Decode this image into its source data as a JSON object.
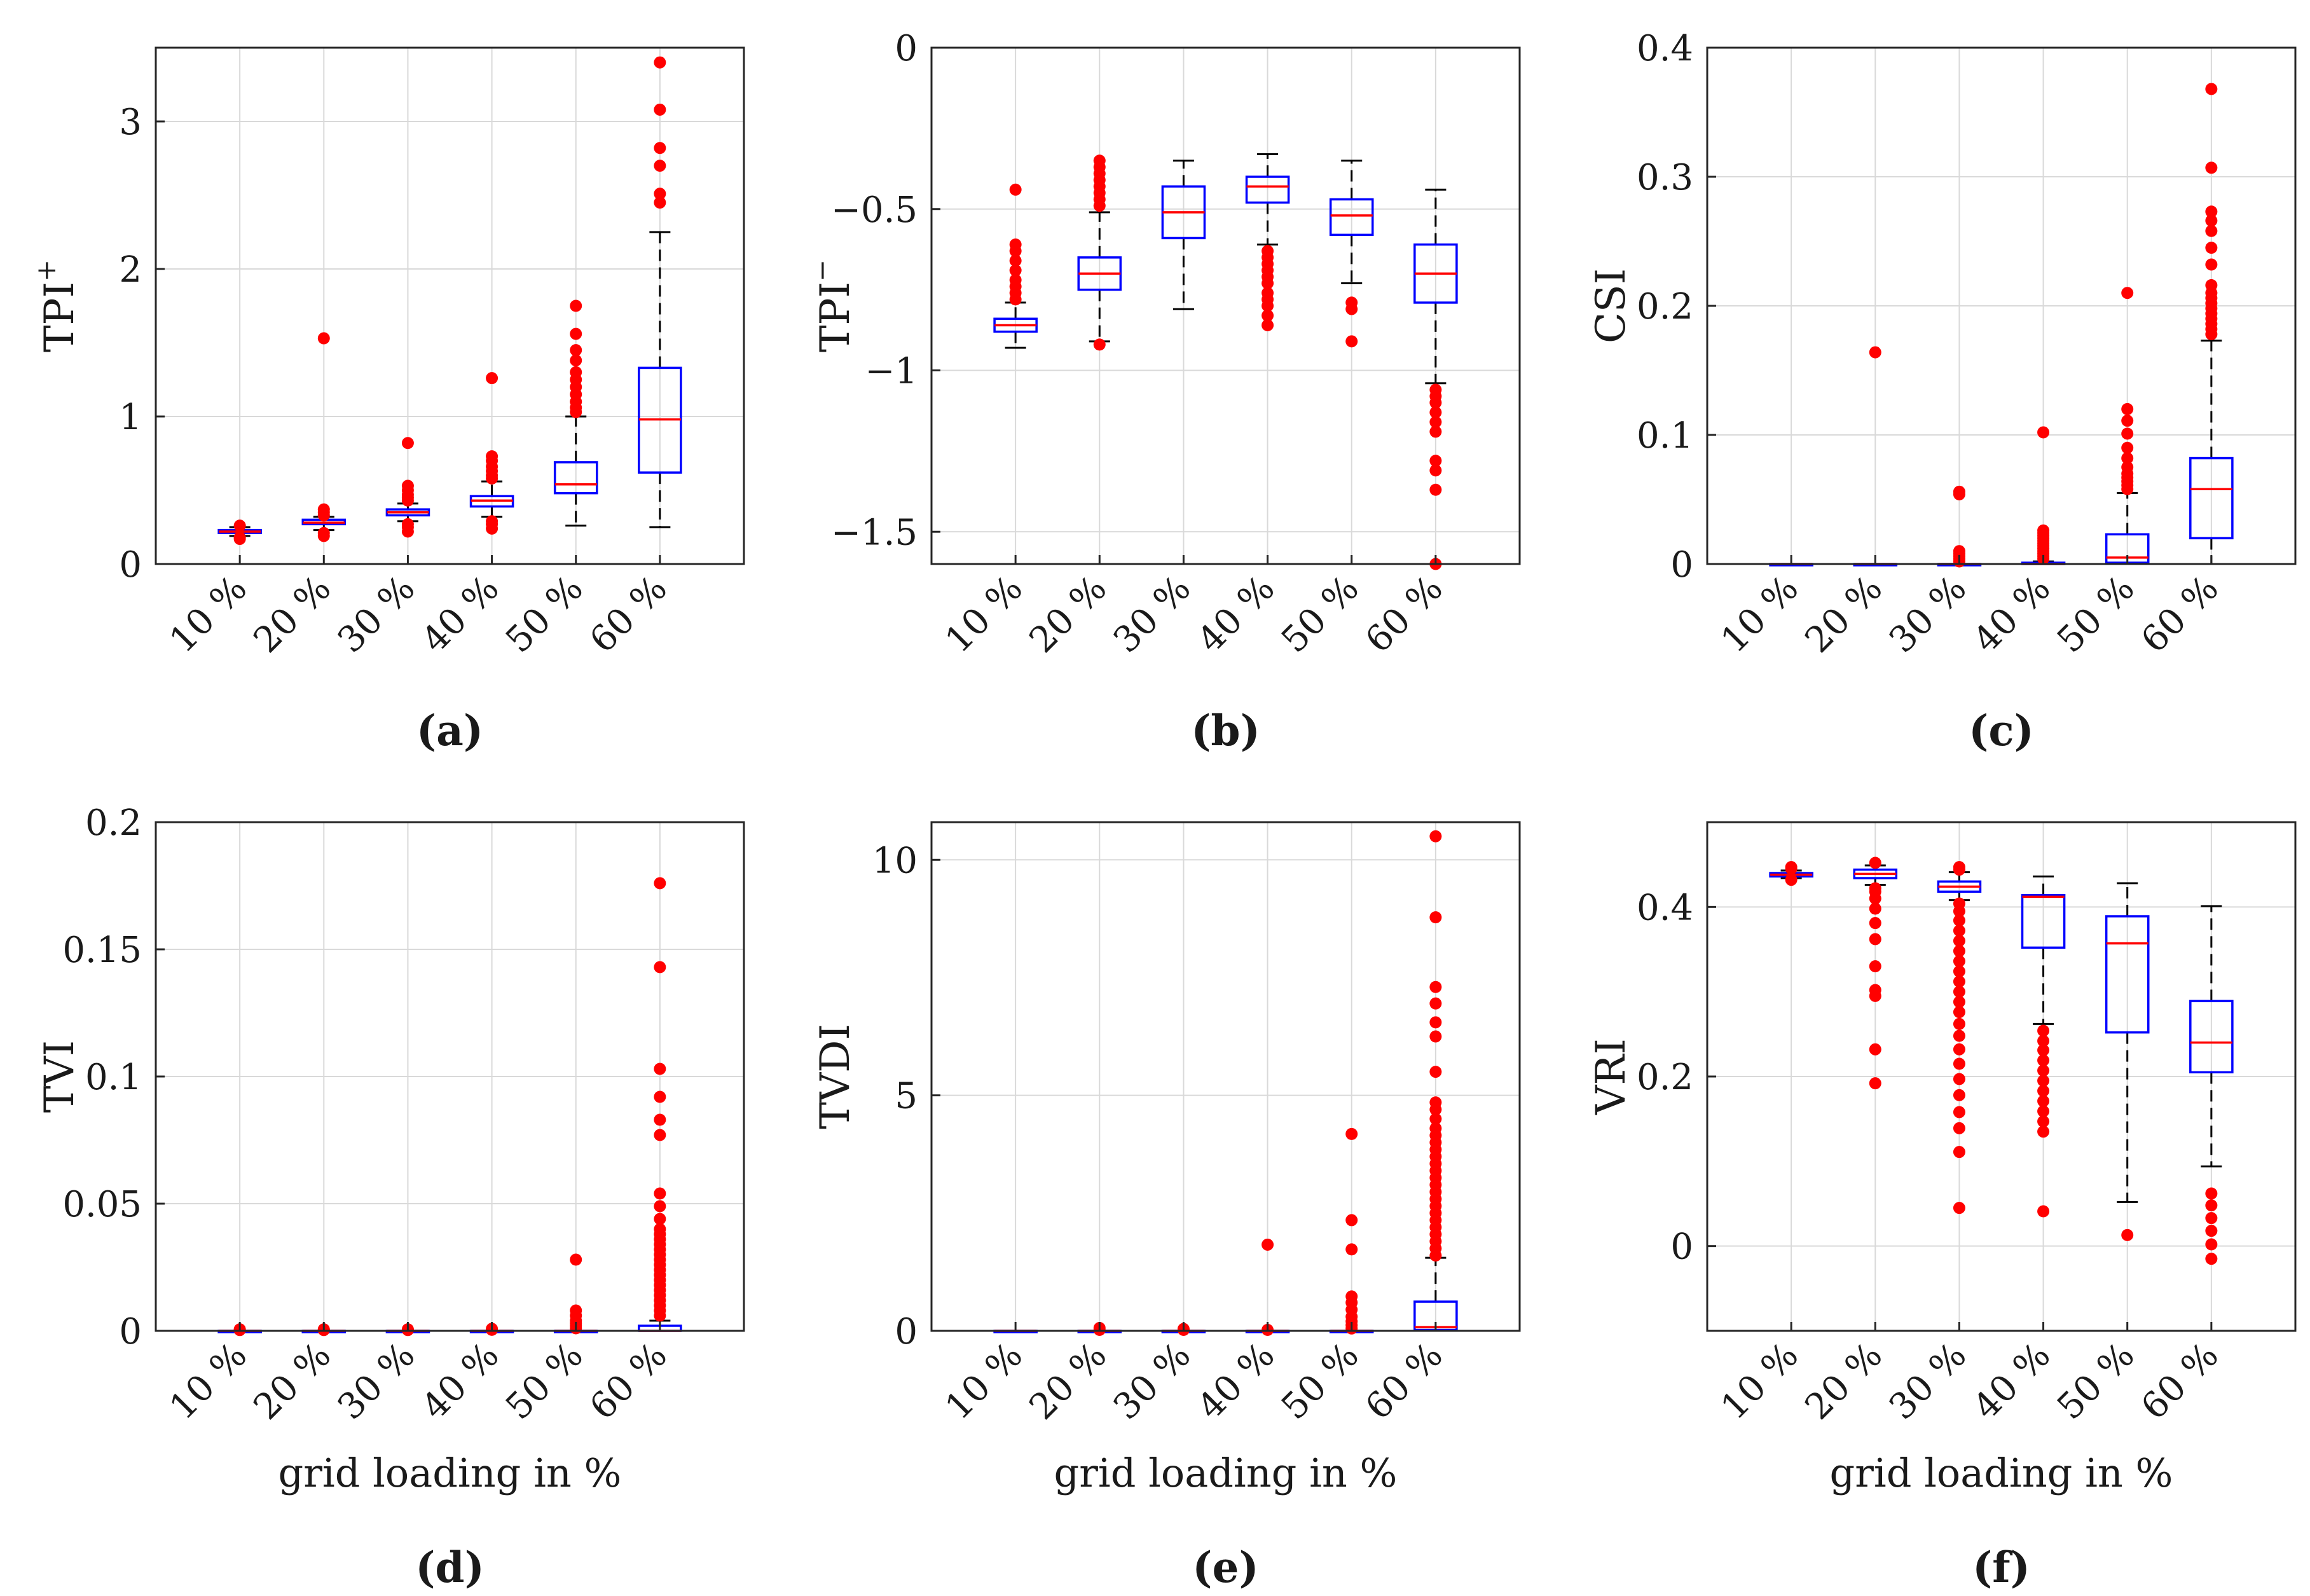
{
  "figure": {
    "panels": [
      "(a)",
      "(b)",
      "(c)",
      "(d)",
      "(e)",
      "(f)"
    ]
  },
  "colors": {
    "box": "#0000ff",
    "median": "#ff0000",
    "outlier": "#ff0000",
    "whisker": "#000000",
    "grid": "#d9d9d9",
    "axes": "#262626"
  },
  "chart_data": [
    {
      "type": "box",
      "panel_label": "(a)",
      "ylabel": "TPI",
      "ylabel_sup": "+",
      "xlabel": "",
      "categories": [
        "10 %",
        "20 %",
        "30 %",
        "40 %",
        "50 %",
        "60 %"
      ],
      "ylim": [
        0,
        3.5
      ],
      "yticks": [
        0,
        1,
        2,
        3
      ],
      "ytick_labels": [
        "0",
        "1",
        "2",
        "3"
      ],
      "grid": true,
      "boxes": [
        {
          "whisker_low": 0.19,
          "q1": 0.21,
          "median": 0.22,
          "q3": 0.23,
          "whisker_high": 0.25,
          "outliers": [
            0.17,
            0.18,
            0.26
          ]
        },
        {
          "whisker_low": 0.23,
          "q1": 0.27,
          "median": 0.28,
          "q3": 0.3,
          "whisker_high": 0.32,
          "outliers": [
            0.19,
            0.21,
            0.33,
            0.35,
            0.37,
            1.53
          ]
        },
        {
          "whisker_low": 0.29,
          "q1": 0.33,
          "median": 0.35,
          "q3": 0.37,
          "whisker_high": 0.41,
          "outliers": [
            0.22,
            0.25,
            0.27,
            0.43,
            0.45,
            0.47,
            0.5,
            0.53,
            0.82
          ]
        },
        {
          "whisker_low": 0.32,
          "q1": 0.39,
          "median": 0.43,
          "q3": 0.46,
          "whisker_high": 0.56,
          "outliers": [
            0.24,
            0.27,
            0.29,
            0.58,
            0.6,
            0.63,
            0.66,
            0.7,
            0.73,
            1.26
          ]
        },
        {
          "whisker_low": 0.26,
          "q1": 0.48,
          "median": 0.54,
          "q3": 0.69,
          "whisker_high": 1.0,
          "outliers": [
            1.03,
            1.06,
            1.1,
            1.15,
            1.2,
            1.25,
            1.3,
            1.38,
            1.45,
            1.56,
            1.75
          ]
        },
        {
          "whisker_low": 0.25,
          "q1": 0.62,
          "median": 0.98,
          "q3": 1.33,
          "whisker_high": 2.25,
          "outliers": [
            2.45,
            2.51,
            2.7,
            2.82,
            3.08,
            3.4
          ]
        }
      ]
    },
    {
      "type": "box",
      "panel_label": "(b)",
      "ylabel": "TPI",
      "ylabel_sup": "−",
      "xlabel": "",
      "categories": [
        "10 %",
        "20 %",
        "30 %",
        "40 %",
        "50 %",
        "60 %"
      ],
      "ylim": [
        -1.6,
        0
      ],
      "yticks": [
        0,
        -0.5,
        -1,
        -1.5
      ],
      "ytick_labels": [
        "0",
        "−0.5",
        "−1",
        "−1.5"
      ],
      "grid": true,
      "boxes": [
        {
          "whisker_low": -0.93,
          "q1": -0.88,
          "median": -0.86,
          "q3": -0.84,
          "whisker_high": -0.79,
          "outliers": [
            -0.44,
            -0.61,
            -0.63,
            -0.66,
            -0.69,
            -0.72,
            -0.74,
            -0.76,
            -0.78
          ]
        },
        {
          "whisker_low": -0.91,
          "q1": -0.75,
          "median": -0.7,
          "q3": -0.65,
          "whisker_high": -0.51,
          "outliers": [
            -0.35,
            -0.37,
            -0.39,
            -0.41,
            -0.43,
            -0.45,
            -0.47,
            -0.49,
            -0.92
          ]
        },
        {
          "whisker_low": -0.81,
          "q1": -0.59,
          "median": -0.51,
          "q3": -0.43,
          "whisker_high": -0.35,
          "outliers": []
        },
        {
          "whisker_low": -0.61,
          "q1": -0.48,
          "median": -0.43,
          "q3": -0.4,
          "whisker_high": -0.33,
          "outliers": [
            -0.63,
            -0.65,
            -0.67,
            -0.69,
            -0.71,
            -0.73,
            -0.76,
            -0.78,
            -0.8,
            -0.83,
            -0.86
          ]
        },
        {
          "whisker_low": -0.73,
          "q1": -0.58,
          "median": -0.52,
          "q3": -0.47,
          "whisker_high": -0.35,
          "outliers": [
            -0.79,
            -0.81,
            -0.91
          ]
        },
        {
          "whisker_low": -1.04,
          "q1": -0.79,
          "median": -0.7,
          "q3": -0.61,
          "whisker_high": -0.44,
          "outliers": [
            -1.06,
            -1.08,
            -1.1,
            -1.13,
            -1.16,
            -1.19,
            -1.28,
            -1.31,
            -1.37,
            -1.6
          ]
        }
      ]
    },
    {
      "type": "box",
      "panel_label": "(c)",
      "ylabel": "CSI",
      "xlabel": "",
      "categories": [
        "10 %",
        "20 %",
        "30 %",
        "40 %",
        "50 %",
        "60 %"
      ],
      "ylim": [
        0,
        0.4
      ],
      "yticks": [
        0,
        0.1,
        0.2,
        0.3,
        0.4
      ],
      "ytick_labels": [
        "0",
        "0.1",
        "0.2",
        "0.3",
        "0.4"
      ],
      "grid": true,
      "boxes": [
        {
          "whisker_low": 0,
          "q1": 0,
          "median": 0,
          "q3": 0,
          "whisker_high": 0,
          "outliers": []
        },
        {
          "whisker_low": 0,
          "q1": 0,
          "median": 0,
          "q3": 0,
          "whisker_high": 0,
          "outliers": [
            0.164
          ]
        },
        {
          "whisker_low": 0,
          "q1": 0,
          "median": 0,
          "q3": 0,
          "whisker_high": 0,
          "outliers": [
            0.002,
            0.004,
            0.006,
            0.008,
            0.01,
            0.054,
            0.056
          ]
        },
        {
          "whisker_low": 0,
          "q1": 0,
          "median": 0,
          "q3": 0.001,
          "whisker_high": 0.002,
          "outliers": [
            0.004,
            0.006,
            0.008,
            0.01,
            0.012,
            0.014,
            0.016,
            0.018,
            0.02,
            0.022,
            0.024,
            0.026,
            0.102
          ]
        },
        {
          "whisker_low": 0,
          "q1": 0.001,
          "median": 0.005,
          "q3": 0.023,
          "whisker_high": 0.055,
          "outliers": [
            0.058,
            0.061,
            0.064,
            0.067,
            0.07,
            0.075,
            0.082,
            0.09,
            0.101,
            0.111,
            0.12,
            0.21
          ]
        },
        {
          "whisker_low": 0,
          "q1": 0.02,
          "median": 0.058,
          "q3": 0.082,
          "whisker_high": 0.173,
          "outliers": [
            0.178,
            0.182,
            0.186,
            0.19,
            0.194,
            0.198,
            0.202,
            0.206,
            0.21,
            0.216,
            0.232,
            0.245,
            0.258,
            0.266,
            0.273,
            0.307,
            0.368
          ]
        }
      ]
    },
    {
      "type": "box",
      "panel_label": "(d)",
      "ylabel": "TVI",
      "xlabel": "grid loading in %",
      "categories": [
        "10 %",
        "20 %",
        "30 %",
        "40 %",
        "50 %",
        "60 %"
      ],
      "ylim": [
        0,
        0.2
      ],
      "yticks": [
        0,
        0.05,
        0.1,
        0.15,
        0.2
      ],
      "ytick_labels": [
        "0",
        "0.05",
        "0.1",
        "0.15",
        "0.2"
      ],
      "grid": true,
      "boxes": [
        {
          "whisker_low": 0,
          "q1": 0,
          "median": 0,
          "q3": 0,
          "whisker_high": 0,
          "outliers": [
            0.0003,
            0.0006
          ]
        },
        {
          "whisker_low": 0,
          "q1": 0,
          "median": 0,
          "q3": 0,
          "whisker_high": 0,
          "outliers": [
            0.0003,
            0.0006
          ]
        },
        {
          "whisker_low": 0,
          "q1": 0,
          "median": 0,
          "q3": 0,
          "whisker_high": 0,
          "outliers": [
            0.0003,
            0.0006
          ]
        },
        {
          "whisker_low": 0,
          "q1": 0,
          "median": 0,
          "q3": 0,
          "whisker_high": 0,
          "outliers": [
            0.0004,
            0.0008
          ]
        },
        {
          "whisker_low": 0,
          "q1": 0,
          "median": 0,
          "q3": 0,
          "whisker_high": 0,
          "outliers": [
            0.001,
            0.002,
            0.003,
            0.004,
            0.006,
            0.008,
            0.028
          ]
        },
        {
          "whisker_low": 0,
          "q1": 0,
          "median": 0,
          "q3": 0.002,
          "whisker_high": 0.004,
          "outliers": [
            0.006,
            0.008,
            0.01,
            0.012,
            0.014,
            0.016,
            0.018,
            0.02,
            0.022,
            0.024,
            0.026,
            0.028,
            0.03,
            0.032,
            0.034,
            0.036,
            0.038,
            0.04,
            0.044,
            0.049,
            0.054,
            0.077,
            0.083,
            0.092,
            0.103,
            0.143,
            0.176
          ]
        }
      ]
    },
    {
      "type": "box",
      "panel_label": "(e)",
      "ylabel": "TVDI",
      "xlabel": "grid loading in %",
      "categories": [
        "10 %",
        "20 %",
        "30 %",
        "40 %",
        "50 %",
        "60 %"
      ],
      "ylim": [
        0,
        10.8
      ],
      "yticks": [
        0,
        5,
        10
      ],
      "ytick_labels": [
        "0",
        "5",
        "10"
      ],
      "grid": true,
      "boxes": [
        {
          "whisker_low": 0,
          "q1": 0,
          "median": 0,
          "q3": 0,
          "whisker_high": 0,
          "outliers": []
        },
        {
          "whisker_low": 0,
          "q1": 0,
          "median": 0,
          "q3": 0,
          "whisker_high": 0,
          "outliers": [
            0.02,
            0.06
          ]
        },
        {
          "whisker_low": 0,
          "q1": 0,
          "median": 0,
          "q3": 0,
          "whisker_high": 0,
          "outliers": [
            0.02,
            0.04
          ]
        },
        {
          "whisker_low": 0,
          "q1": 0,
          "median": 0,
          "q3": 0,
          "whisker_high": 0,
          "outliers": [
            0.02,
            1.83
          ]
        },
        {
          "whisker_low": 0,
          "q1": 0,
          "median": 0,
          "q3": 0,
          "whisker_high": 0,
          "outliers": [
            0.05,
            0.12,
            0.2,
            0.3,
            0.45,
            0.6,
            0.73,
            1.73,
            2.35,
            4.18
          ]
        },
        {
          "whisker_low": 0,
          "q1": 0.02,
          "median": 0.08,
          "q3": 0.62,
          "whisker_high": 1.55,
          "outliers": [
            1.6,
            1.75,
            1.9,
            2.05,
            2.2,
            2.35,
            2.5,
            2.65,
            2.8,
            2.95,
            3.1,
            3.25,
            3.4,
            3.55,
            3.7,
            3.85,
            4.0,
            4.15,
            4.3,
            4.5,
            4.7,
            4.85,
            5.5,
            6.25,
            6.55,
            6.95,
            7.3,
            8.78,
            10.5
          ]
        }
      ]
    },
    {
      "type": "box",
      "panel_label": "(f)",
      "ylabel": "VRI",
      "xlabel": "grid loading in %",
      "categories": [
        "10 %",
        "20 %",
        "30 %",
        "40 %",
        "50 %",
        "60 %"
      ],
      "ylim": [
        -0.1,
        0.5
      ],
      "yticks": [
        0,
        0.2,
        0.4
      ],
      "ytick_labels": [
        "0",
        "0.2",
        "0.4"
      ],
      "grid": true,
      "boxes": [
        {
          "whisker_low": 0.434,
          "q1": 0.436,
          "median": 0.438,
          "q3": 0.44,
          "whisker_high": 0.443,
          "outliers": [
            0.432,
            0.445,
            0.447
          ]
        },
        {
          "whisker_low": 0.426,
          "q1": 0.434,
          "median": 0.439,
          "q3": 0.444,
          "whisker_high": 0.449,
          "outliers": [
            0.192,
            0.232,
            0.295,
            0.302,
            0.33,
            0.362,
            0.381,
            0.398,
            0.41,
            0.418,
            0.422,
            0.452
          ]
        },
        {
          "whisker_low": 0.408,
          "q1": 0.418,
          "median": 0.424,
          "q3": 0.43,
          "whisker_high": 0.441,
          "outliers": [
            0.045,
            0.111,
            0.139,
            0.158,
            0.178,
            0.197,
            0.215,
            0.232,
            0.248,
            0.262,
            0.276,
            0.288,
            0.3,
            0.312,
            0.324,
            0.336,
            0.348,
            0.36,
            0.372,
            0.384,
            0.395,
            0.404,
            0.444,
            0.447
          ]
        },
        {
          "whisker_low": 0.262,
          "q1": 0.352,
          "median": 0.412,
          "q3": 0.414,
          "whisker_high": 0.436,
          "outliers": [
            0.041,
            0.135,
            0.147,
            0.159,
            0.171,
            0.183,
            0.195,
            0.207,
            0.219,
            0.231,
            0.242,
            0.254
          ]
        },
        {
          "whisker_low": 0.052,
          "q1": 0.252,
          "median": 0.357,
          "q3": 0.389,
          "whisker_high": 0.428,
          "outliers": [
            0.013
          ]
        },
        {
          "whisker_low": 0.094,
          "q1": 0.205,
          "median": 0.24,
          "q3": 0.289,
          "whisker_high": 0.401,
          "outliers": [
            -0.015,
            0.002,
            0.018,
            0.033,
            0.048,
            0.062
          ]
        }
      ]
    }
  ]
}
